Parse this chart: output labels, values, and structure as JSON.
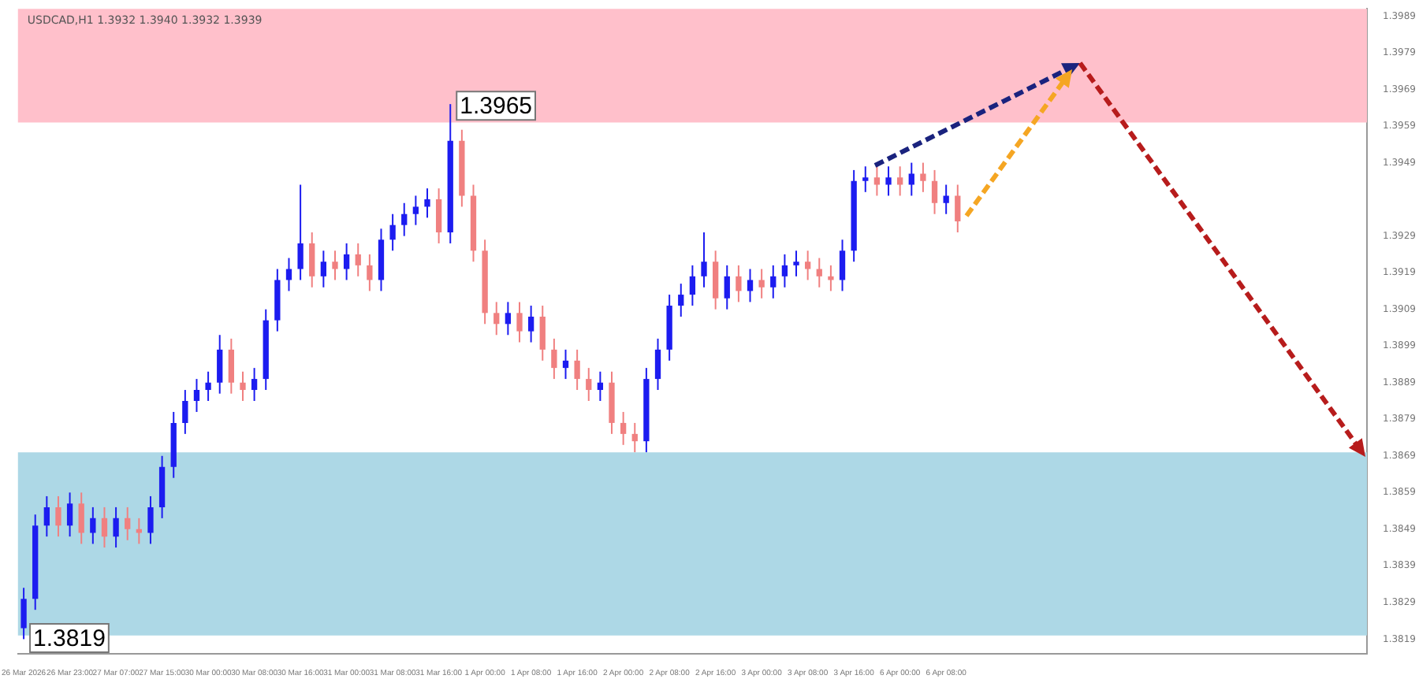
{
  "chart_data": {
    "type": "candlestick",
    "title": "USDCAD,H1 1.3932 1.3940 1.3932 1.3939",
    "categories": [
      "26 Mar 2026",
      null,
      null,
      null,
      "26 Mar 23:00",
      null,
      null,
      null,
      "27 Mar 07:00",
      null,
      null,
      null,
      "27 Mar 15:00",
      null,
      null,
      null,
      "30 Mar 00:00",
      null,
      null,
      null,
      "30 Mar 08:00",
      null,
      null,
      null,
      "30 Mar 16:00",
      null,
      null,
      null,
      "31 Mar 00:00",
      null,
      null,
      null,
      "31 Mar 08:00",
      null,
      null,
      null,
      "31 Mar 16:00",
      null,
      null,
      null,
      "1 Apr 00:00",
      null,
      null,
      null,
      "1 Apr 08:00",
      null,
      null,
      null,
      "1 Apr 16:00",
      null,
      null,
      null,
      "2 Apr 00:00",
      null,
      null,
      null,
      "2 Apr 08:00",
      null,
      null,
      null,
      "2 Apr 16:00",
      null,
      null,
      null,
      "3 Apr 00:00",
      null,
      null,
      null,
      "3 Apr 08:00",
      null,
      null,
      null,
      "3 Apr 16:00",
      null,
      null,
      null,
      "6 Apr 00:00",
      null,
      null,
      null,
      "6 Apr 08:00",
      null,
      null,
      null,
      null,
      null,
      null,
      null,
      null,
      null,
      null,
      null,
      null,
      null,
      null,
      null,
      null,
      null,
      null,
      null,
      null,
      null,
      null,
      null,
      null,
      null,
      null,
      null,
      null,
      null,
      null,
      null,
      null,
      null,
      null,
      null,
      null
    ],
    "ohlc": [
      [
        1.3822,
        1.3833,
        1.3819,
        1.383
      ],
      [
        1.383,
        1.3853,
        1.3827,
        1.385
      ],
      [
        1.385,
        1.3858,
        1.3847,
        1.3855
      ],
      [
        1.3855,
        1.3858,
        1.3847,
        1.385
      ],
      [
        1.385,
        1.3859,
        1.3847,
        1.3856
      ],
      [
        1.3856,
        1.3859,
        1.3845,
        1.3848
      ],
      [
        1.3848,
        1.3855,
        1.3845,
        1.3852
      ],
      [
        1.3852,
        1.3855,
        1.3844,
        1.3847
      ],
      [
        1.3847,
        1.3855,
        1.3844,
        1.3852
      ],
      [
        1.3852,
        1.3855,
        1.3846,
        1.3849
      ],
      [
        1.3849,
        1.3852,
        1.3845,
        1.3848
      ],
      [
        1.3848,
        1.3858,
        1.3845,
        1.3855
      ],
      [
        1.3855,
        1.3869,
        1.3852,
        1.3866
      ],
      [
        1.3866,
        1.3881,
        1.3863,
        1.3878
      ],
      [
        1.3878,
        1.3887,
        1.3875,
        1.3884
      ],
      [
        1.3884,
        1.389,
        1.3881,
        1.3887
      ],
      [
        1.3887,
        1.3892,
        1.3884,
        1.3889
      ],
      [
        1.3889,
        1.3902,
        1.3886,
        1.3898
      ],
      [
        1.3898,
        1.3901,
        1.3886,
        1.3889
      ],
      [
        1.3889,
        1.3892,
        1.3884,
        1.3887
      ],
      [
        1.3887,
        1.3893,
        1.3884,
        1.389
      ],
      [
        1.389,
        1.3909,
        1.3887,
        1.3906
      ],
      [
        1.3906,
        1.392,
        1.3903,
        1.3917
      ],
      [
        1.3917,
        1.3923,
        1.3914,
        1.392
      ],
      [
        1.392,
        1.3943,
        1.3917,
        1.3927
      ],
      [
        1.3927,
        1.393,
        1.3915,
        1.3918
      ],
      [
        1.3918,
        1.3925,
        1.3915,
        1.3922
      ],
      [
        1.3922,
        1.3925,
        1.3917,
        1.392
      ],
      [
        1.392,
        1.3927,
        1.3917,
        1.3924
      ],
      [
        1.3924,
        1.3927,
        1.3918,
        1.3921
      ],
      [
        1.3921,
        1.3924,
        1.3914,
        1.3917
      ],
      [
        1.3917,
        1.3931,
        1.3914,
        1.3928
      ],
      [
        1.3928,
        1.3935,
        1.3925,
        1.3932
      ],
      [
        1.3932,
        1.3938,
        1.3929,
        1.3935
      ],
      [
        1.3935,
        1.394,
        1.3932,
        1.3937
      ],
      [
        1.3937,
        1.3942,
        1.3934,
        1.3939
      ],
      [
        1.3939,
        1.3942,
        1.3927,
        1.393
      ],
      [
        1.393,
        1.3965,
        1.3927,
        1.3955
      ],
      [
        1.3955,
        1.3958,
        1.3937,
        1.394
      ],
      [
        1.394,
        1.3943,
        1.3922,
        1.3925
      ],
      [
        1.3925,
        1.3928,
        1.3905,
        1.3908
      ],
      [
        1.3908,
        1.3911,
        1.3902,
        1.3905
      ],
      [
        1.3905,
        1.3911,
        1.3902,
        1.3908
      ],
      [
        1.3908,
        1.3911,
        1.39,
        1.3903
      ],
      [
        1.3903,
        1.391,
        1.39,
        1.3907
      ],
      [
        1.3907,
        1.391,
        1.3895,
        1.3898
      ],
      [
        1.3898,
        1.3901,
        1.389,
        1.3893
      ],
      [
        1.3893,
        1.3898,
        1.389,
        1.3895
      ],
      [
        1.3895,
        1.3898,
        1.3887,
        1.389
      ],
      [
        1.389,
        1.3893,
        1.3884,
        1.3887
      ],
      [
        1.3887,
        1.3892,
        1.3884,
        1.3889
      ],
      [
        1.3889,
        1.3892,
        1.3875,
        1.3878
      ],
      [
        1.3878,
        1.3881,
        1.3872,
        1.3875
      ],
      [
        1.3875,
        1.3878,
        1.387,
        1.3873
      ],
      [
        1.3873,
        1.3893,
        1.387,
        1.389
      ],
      [
        1.389,
        1.3901,
        1.3887,
        1.3898
      ],
      [
        1.3898,
        1.3913,
        1.3895,
        1.391
      ],
      [
        1.391,
        1.3916,
        1.3907,
        1.3913
      ],
      [
        1.3913,
        1.3921,
        1.391,
        1.3918
      ],
      [
        1.3918,
        1.393,
        1.3915,
        1.3922
      ],
      [
        1.3922,
        1.3925,
        1.3909,
        1.3912
      ],
      [
        1.3912,
        1.3921,
        1.3909,
        1.3918
      ],
      [
        1.3918,
        1.3921,
        1.3911,
        1.3914
      ],
      [
        1.3914,
        1.392,
        1.3911,
        1.3917
      ],
      [
        1.3917,
        1.392,
        1.3912,
        1.3915
      ],
      [
        1.3915,
        1.3921,
        1.3912,
        1.3918
      ],
      [
        1.3918,
        1.3924,
        1.3915,
        1.3921
      ],
      [
        1.3921,
        1.3925,
        1.3918,
        1.3922
      ],
      [
        1.3922,
        1.3925,
        1.3917,
        1.392
      ],
      [
        1.392,
        1.3923,
        1.3915,
        1.3918
      ],
      [
        1.3918,
        1.3921,
        1.3914,
        1.3917
      ],
      [
        1.3917,
        1.3928,
        1.3914,
        1.3925
      ],
      [
        1.3925,
        1.3947,
        1.3922,
        1.3944
      ],
      [
        1.3944,
        1.3948,
        1.3941,
        1.3945
      ],
      [
        1.3945,
        1.3948,
        1.394,
        1.3943
      ],
      [
        1.3943,
        1.3948,
        1.394,
        1.3945
      ],
      [
        1.3945,
        1.3948,
        1.394,
        1.3943
      ],
      [
        1.3943,
        1.3949,
        1.394,
        1.3946
      ],
      [
        1.3946,
        1.3949,
        1.3941,
        1.3944
      ],
      [
        1.3944,
        1.3947,
        1.3935,
        1.3938
      ],
      [
        1.3938,
        1.3943,
        1.3935,
        1.394
      ],
      [
        1.394,
        1.3943,
        1.393,
        1.3933
      ],
      null,
      null,
      null,
      null,
      null,
      null,
      null,
      null,
      null,
      null,
      null,
      null,
      null,
      null,
      null,
      null,
      null,
      null,
      null,
      null,
      null,
      null,
      null,
      null,
      null,
      null,
      null,
      null,
      null,
      null,
      null,
      null,
      null,
      null,
      null
    ],
    "colors": [
      "#1c1cf0",
      "#1c1cf0",
      "#1c1cf0",
      "#f08080",
      "#1c1cf0",
      "#f08080",
      "#1c1cf0",
      "#f08080",
      "#1c1cf0",
      "#f08080",
      "#f08080",
      "#1c1cf0",
      "#1c1cf0",
      "#1c1cf0",
      "#1c1cf0",
      "#1c1cf0",
      "#1c1cf0",
      "#1c1cf0",
      "#f08080",
      "#f08080",
      "#1c1cf0",
      "#1c1cf0",
      "#1c1cf0",
      "#1c1cf0",
      "#1c1cf0",
      "#f08080",
      "#1c1cf0",
      "#f08080",
      "#1c1cf0",
      "#f08080",
      "#f08080",
      "#1c1cf0",
      "#1c1cf0",
      "#1c1cf0",
      "#1c1cf0",
      "#1c1cf0",
      "#f08080",
      "#1c1cf0",
      "#f08080",
      "#f08080",
      "#f08080",
      "#f08080",
      "#1c1cf0",
      "#f08080",
      "#1c1cf0",
      "#f08080",
      "#f08080",
      "#1c1cf0",
      "#f08080",
      "#f08080",
      "#1c1cf0",
      "#f08080",
      "#f08080",
      "#f08080",
      "#1c1cf0",
      "#1c1cf0",
      "#1c1cf0",
      "#1c1cf0",
      "#1c1cf0",
      "#1c1cf0",
      "#f08080",
      "#1c1cf0",
      "#f08080",
      "#1c1cf0",
      "#f08080",
      "#1c1cf0",
      "#1c1cf0",
      "#1c1cf0",
      "#f08080",
      "#f08080",
      "#f08080",
      "#1c1cf0",
      "#1c1cf0",
      "#1c1cf0",
      "#f08080",
      "#1c1cf0",
      "#f08080",
      "#1c1cf0",
      "#f08080",
      "#f08080",
      "#1c1cf0",
      "#f08080",
      null,
      null,
      null,
      null,
      null,
      null,
      null,
      null,
      null,
      null,
      null,
      null,
      null,
      null,
      null,
      null,
      null,
      null,
      null,
      null,
      null,
      null,
      null,
      null,
      null,
      null,
      null,
      null,
      null,
      null,
      null,
      null,
      null,
      null,
      null
    ],
    "ylim": [
      1.3815,
      1.3991
    ],
    "yticks": [
      1.3819,
      1.3829,
      1.3839,
      1.3849,
      1.3859,
      1.3869,
      1.3879,
      1.3889,
      1.3899,
      1.3909,
      1.3919,
      1.3929,
      1.3949,
      1.3959,
      1.3969,
      1.3979,
      1.3989
    ],
    "bands": [
      {
        "axis": "y",
        "from": 1.396,
        "to": 1.3991,
        "color": "#ffc0cb"
      },
      {
        "axis": "y",
        "from": 1.382,
        "to": 1.387,
        "color": "#add8e6"
      }
    ],
    "annotations": [
      "1.3965",
      "1.3819"
    ],
    "grid": false,
    "legend": false
  }
}
